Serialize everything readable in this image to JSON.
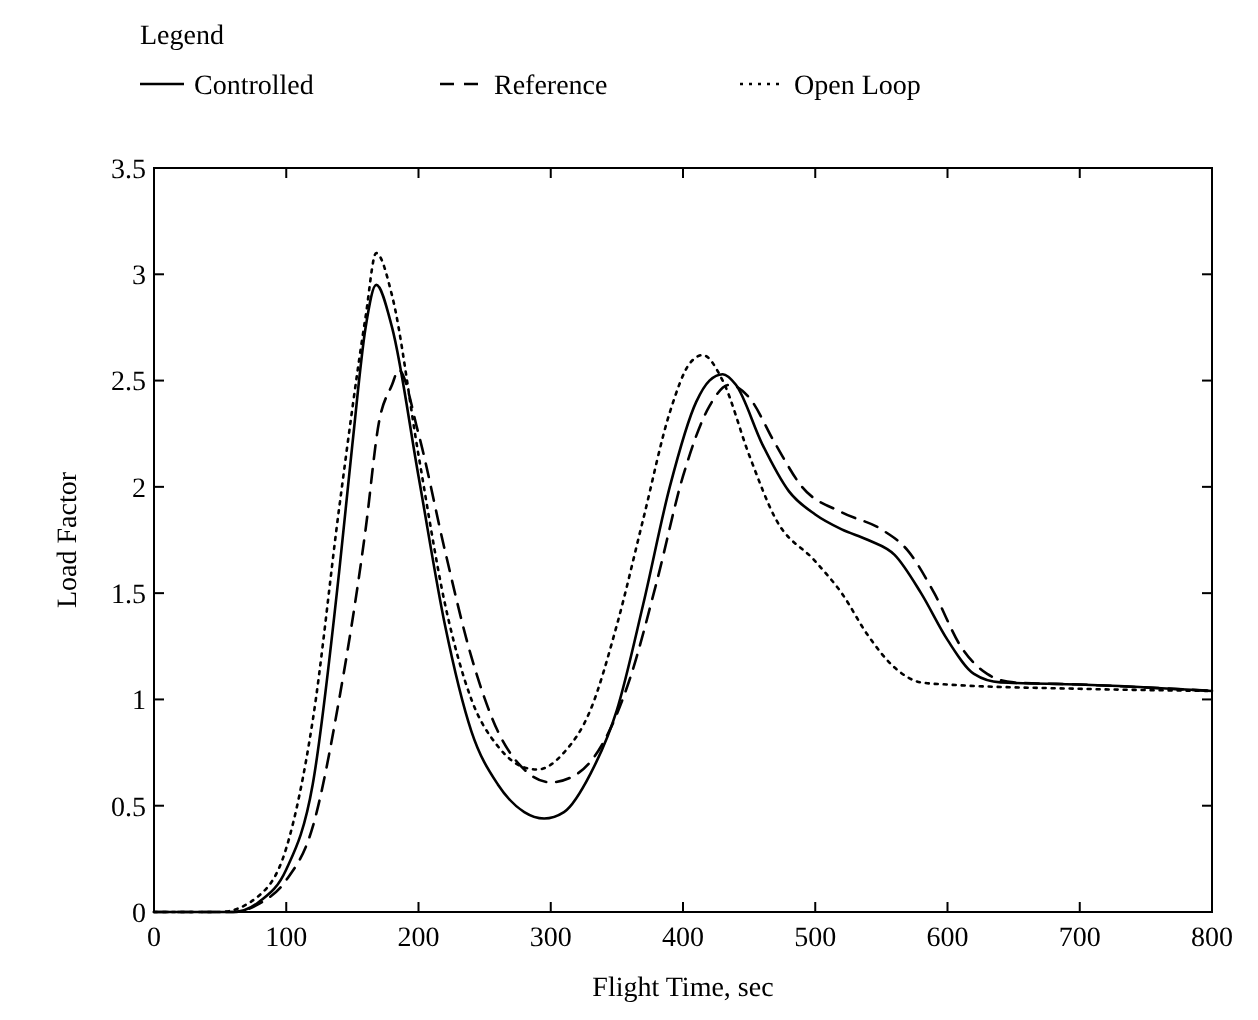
{
  "chart_data": {
    "type": "line",
    "xlabel": "Flight Time, sec",
    "ylabel": "Load Factor",
    "legend_title": "Legend",
    "legend": "top left",
    "grid": false,
    "xlim": [
      0,
      800
    ],
    "xticks": [
      0,
      100,
      200,
      300,
      400,
      500,
      600,
      700,
      800
    ],
    "ylim": [
      0,
      3.5
    ],
    "yticks": [
      0,
      0.5,
      1,
      1.5,
      2,
      2.5,
      3,
      3.5
    ],
    "series": [
      {
        "name": "Controlled",
        "color": "#000000",
        "line_style": "solid",
        "x": [
          0,
          60,
          80,
          100,
          120,
          140,
          150,
          160,
          168,
          180,
          200,
          220,
          240,
          260,
          280,
          295,
          310,
          330,
          350,
          370,
          390,
          410,
          420,
          430,
          440,
          460,
          480,
          500,
          520,
          540,
          560,
          580,
          600,
          620,
          640,
          700,
          800
        ],
        "values": [
          0,
          0,
          0.05,
          0.2,
          0.6,
          1.6,
          2.2,
          2.75,
          2.95,
          2.75,
          2.05,
          1.35,
          0.85,
          0.6,
          0.47,
          0.44,
          0.47,
          0.65,
          0.95,
          1.45,
          2.0,
          2.4,
          2.5,
          2.53,
          2.48,
          2.2,
          1.98,
          1.87,
          1.8,
          1.75,
          1.68,
          1.5,
          1.28,
          1.12,
          1.08,
          1.07,
          1.04
        ]
      },
      {
        "name": "Reference",
        "color": "#000000",
        "line_style": "dashed",
        "x": [
          0,
          60,
          80,
          100,
          120,
          140,
          160,
          170,
          180,
          185,
          200,
          220,
          240,
          260,
          280,
          300,
          320,
          340,
          360,
          380,
          400,
          420,
          435,
          450,
          470,
          490,
          520,
          550,
          570,
          590,
          610,
          630,
          650,
          700,
          800
        ],
        "values": [
          0,
          0,
          0.04,
          0.15,
          0.4,
          1.0,
          1.8,
          2.3,
          2.48,
          2.55,
          2.25,
          1.7,
          1.2,
          0.85,
          0.67,
          0.61,
          0.65,
          0.8,
          1.1,
          1.55,
          2.05,
          2.38,
          2.48,
          2.42,
          2.2,
          2.0,
          1.88,
          1.8,
          1.7,
          1.5,
          1.25,
          1.12,
          1.08,
          1.07,
          1.04
        ]
      },
      {
        "name": "Open Loop",
        "color": "#000000",
        "line_style": "dotted",
        "x": [
          0,
          50,
          80,
          100,
          120,
          140,
          160,
          168,
          180,
          200,
          220,
          240,
          260,
          280,
          290,
          310,
          330,
          350,
          370,
          390,
          405,
          415,
          430,
          450,
          470,
          500,
          520,
          540,
          560,
          580,
          600,
          700,
          800
        ],
        "values": [
          0,
          0,
          0.08,
          0.3,
          0.9,
          1.9,
          2.8,
          3.1,
          2.9,
          2.15,
          1.45,
          1.0,
          0.78,
          0.68,
          0.67,
          0.75,
          0.95,
          1.35,
          1.85,
          2.35,
          2.58,
          2.62,
          2.5,
          2.15,
          1.85,
          1.65,
          1.5,
          1.3,
          1.15,
          1.08,
          1.07,
          1.05,
          1.04
        ]
      }
    ]
  }
}
